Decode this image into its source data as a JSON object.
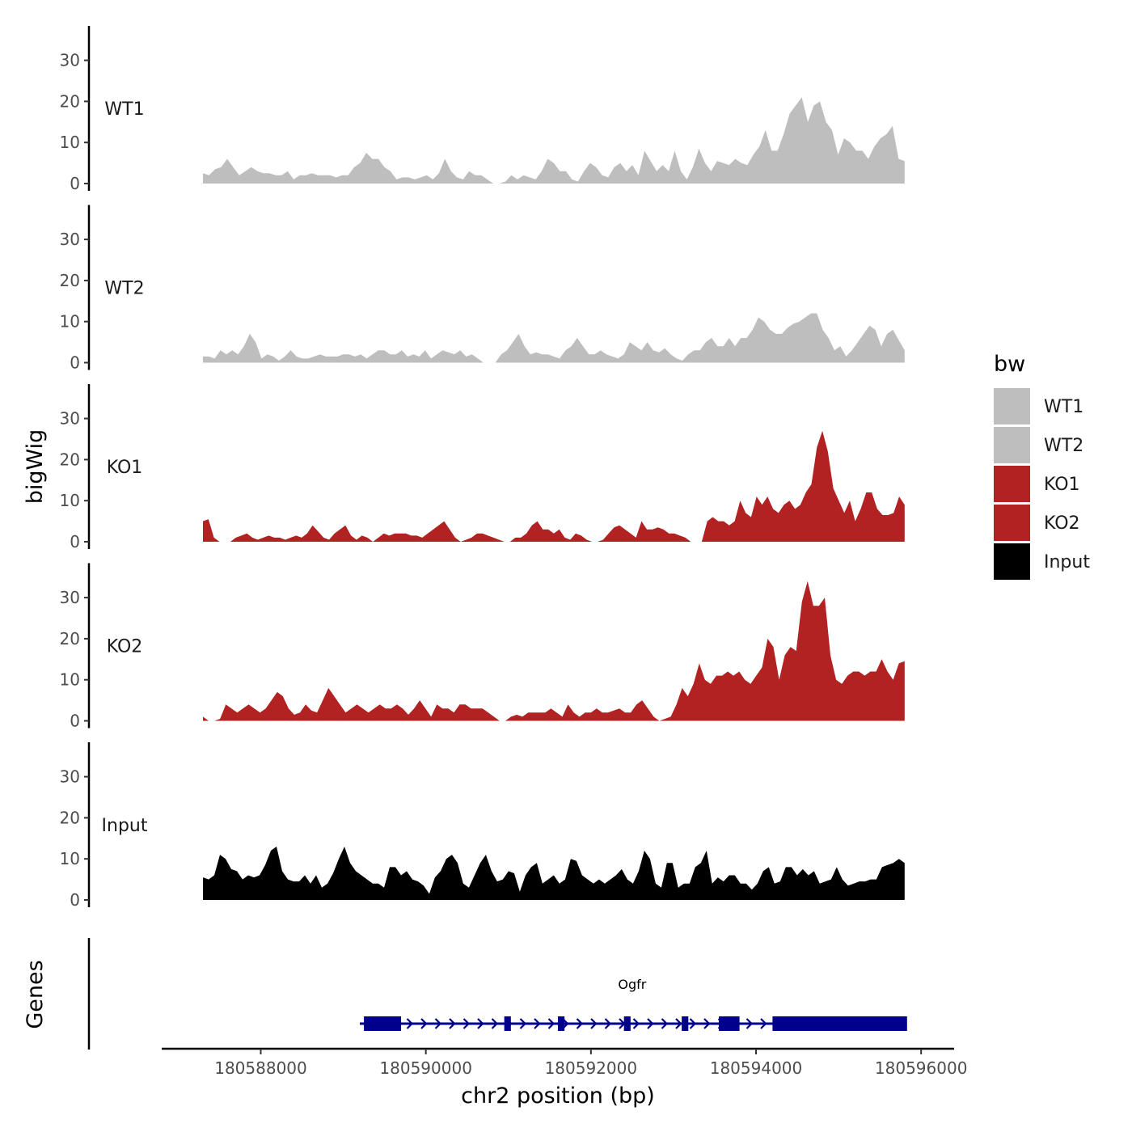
{
  "chart_data": {
    "type": "area",
    "y_axis_title": "bigWig",
    "genes_axis_title": "Genes",
    "x_axis_title": "chr2 position (bp)",
    "xlim": [
      180586800,
      180596400
    ],
    "data_range": [
      180587300,
      180595800
    ],
    "x_ticks": [
      180588000,
      180590000,
      180592000,
      180594000,
      180596000
    ],
    "x_tick_labels": [
      "180588000",
      "180590000",
      "180592000",
      "180594000",
      "180596000"
    ],
    "ylim": [
      0,
      38
    ],
    "y_ticks": [
      0,
      10,
      20,
      30
    ],
    "y_tick_labels": [
      "0",
      "10",
      "20",
      "30"
    ],
    "legend": {
      "title": "bw",
      "entries": [
        {
          "label": "WT1",
          "color": "#bebebe"
        },
        {
          "label": "WT2",
          "color": "#bebebe"
        },
        {
          "label": "KO1",
          "color": "#b22222"
        },
        {
          "label": "KO2",
          "color": "#b22222"
        },
        {
          "label": "Input",
          "color": "#000000"
        }
      ]
    },
    "tracks": [
      {
        "name": "WT1",
        "color": "#bebebe",
        "values": [
          2.5,
          2,
          3.5,
          4,
          6,
          4,
          2,
          3,
          4,
          3,
          2.5,
          2.5,
          2,
          2,
          3,
          1,
          2,
          2,
          2.5,
          2,
          2,
          2,
          1.5,
          2,
          2,
          4,
          5,
          7.5,
          6,
          6,
          4,
          3,
          1,
          1.5,
          1.5,
          1,
          1.5,
          2,
          1,
          2.5,
          6,
          3,
          1.5,
          1,
          3,
          2,
          2,
          1,
          0,
          0,
          0.5,
          2,
          1,
          2,
          1.5,
          1,
          3,
          6,
          5,
          3,
          3,
          1,
          0.5,
          3,
          5,
          4,
          2,
          1.5,
          4,
          5,
          3,
          4.5,
          2,
          8,
          5.5,
          3,
          4.5,
          3,
          8,
          3,
          1,
          4,
          8.5,
          5,
          3,
          5.5,
          5,
          4.5,
          6,
          5,
          4.5,
          7,
          9,
          13,
          8,
          8,
          12,
          17,
          19,
          21,
          15,
          19,
          20,
          15,
          13,
          7,
          11,
          10,
          8,
          8,
          6,
          9,
          11,
          12,
          14,
          6,
          5.5
        ]
      },
      {
        "name": "WT2",
        "color": "#bebebe",
        "values": [
          1.5,
          1.5,
          1,
          3,
          2,
          3,
          2,
          4,
          7,
          5,
          1,
          2,
          1.5,
          0.5,
          1.5,
          3,
          1.5,
          1,
          1,
          1.5,
          2,
          1.5,
          1.5,
          1.5,
          2,
          2,
          1.5,
          2,
          1,
          2,
          3,
          3,
          2,
          2,
          3,
          1.5,
          2,
          1.5,
          3,
          1,
          2,
          3,
          2.5,
          2,
          3,
          1.5,
          2,
          1,
          0,
          0,
          0,
          2,
          3,
          5,
          7,
          4,
          2,
          2.5,
          2,
          2,
          1.5,
          1,
          3,
          4,
          6,
          4,
          2,
          2,
          3,
          2,
          1.5,
          1,
          2,
          5,
          4,
          3,
          5,
          3,
          2.5,
          3.5,
          2,
          1,
          0.5,
          2,
          3,
          3,
          5,
          6,
          4,
          4,
          6,
          4,
          6,
          6,
          8,
          11,
          10,
          8,
          7,
          7,
          8.5,
          9.5,
          10,
          11,
          12,
          12,
          8,
          6,
          3,
          4,
          1.5,
          3,
          5,
          7,
          9,
          8,
          4,
          7,
          8,
          5.5,
          3
        ]
      },
      {
        "name": "KO1",
        "color": "#b22222",
        "values": [
          5,
          5.5,
          1,
          0,
          0,
          0,
          1,
          1.5,
          2,
          1,
          0.5,
          1,
          1.5,
          1,
          1,
          0.5,
          1,
          1.5,
          1,
          2,
          4,
          2.5,
          1,
          0.5,
          2,
          3,
          4,
          1.5,
          0.5,
          1.5,
          1,
          0,
          1,
          2,
          1.5,
          2,
          2,
          2,
          1.5,
          1.5,
          1,
          2,
          3,
          4,
          5,
          3,
          1,
          0,
          0.5,
          1,
          2,
          2,
          1.5,
          1,
          0.5,
          0,
          0,
          1,
          1,
          2,
          4,
          5,
          3,
          3,
          2,
          3,
          1,
          0.5,
          2,
          1.5,
          0.5,
          0,
          0,
          0.5,
          2,
          3.5,
          4,
          3,
          2,
          1,
          5,
          3,
          3,
          3.5,
          3,
          2,
          2,
          1.5,
          1,
          0,
          0,
          0,
          5,
          6,
          5,
          5,
          4,
          5,
          10,
          7,
          6,
          11,
          9,
          11,
          8,
          7,
          9,
          10,
          8,
          9,
          12,
          14,
          23,
          27,
          22,
          13,
          10,
          7,
          10,
          5,
          8,
          12,
          12,
          8,
          6.5,
          6.5,
          7,
          11,
          9
        ]
      },
      {
        "name": "KO2",
        "color": "#b22222",
        "values": [
          1,
          0,
          0,
          0.5,
          4,
          3,
          2,
          3,
          4,
          3,
          2,
          3,
          5,
          7,
          6,
          3,
          1.5,
          2,
          4,
          2.5,
          2,
          5,
          8,
          6,
          4,
          2,
          3,
          4,
          3,
          2,
          3,
          4,
          3,
          3,
          4,
          3,
          1.5,
          3,
          5,
          3,
          1,
          4,
          3,
          3,
          2,
          4,
          4,
          3,
          3,
          3,
          2,
          1,
          0,
          0,
          1,
          1.5,
          1,
          2,
          2,
          2,
          2,
          3,
          2,
          1,
          4,
          2,
          1,
          2,
          2,
          3,
          2,
          2,
          2.5,
          3,
          2,
          2,
          4,
          5,
          3,
          1,
          0,
          0.5,
          1,
          4,
          8,
          6,
          9,
          14,
          10,
          9,
          11,
          11,
          12,
          11,
          12,
          10,
          9,
          11,
          13,
          20,
          18,
          10,
          16,
          18,
          17,
          29,
          34,
          28,
          28,
          30,
          16,
          10,
          9,
          11,
          12,
          12,
          11,
          12,
          12,
          15,
          12,
          10,
          14,
          14.5
        ]
      },
      {
        "name": "Input",
        "color": "#000000",
        "values": [
          5.5,
          5,
          6,
          11,
          10,
          7.5,
          7,
          5,
          6,
          5.5,
          6,
          8.5,
          12,
          13,
          7,
          5,
          4.5,
          4.5,
          6,
          4,
          6,
          3,
          4,
          6.5,
          10,
          13,
          9,
          7,
          6,
          5,
          4,
          4,
          3,
          8,
          8,
          6,
          7,
          5,
          4.5,
          3.5,
          1.5,
          5.5,
          7,
          10,
          11,
          9,
          4,
          3,
          6,
          9,
          11,
          7,
          4.5,
          5,
          7,
          6.5,
          2,
          6,
          8,
          9,
          4,
          5,
          6,
          4,
          5,
          10,
          9.5,
          6,
          5,
          4,
          5,
          4,
          5,
          6,
          7.5,
          5,
          4,
          7,
          12,
          10,
          4,
          3,
          9,
          9,
          3,
          4,
          4,
          8,
          9,
          12,
          4,
          5.5,
          4.5,
          6,
          6,
          4,
          4,
          2.5,
          4,
          7,
          8,
          4,
          4.5,
          8,
          8,
          6,
          7.5,
          6,
          7,
          4,
          4.5,
          5,
          8,
          5,
          3.5,
          4,
          4.5,
          4.5,
          5,
          5,
          8,
          8.5,
          9,
          10,
          9
        ]
      }
    ],
    "gene": {
      "name": "Ogfr",
      "start": 180589200,
      "end": 180595800,
      "strand": "+",
      "color": "#00008b",
      "exons": [
        {
          "start": 180589250,
          "end": 180589700
        },
        {
          "start": 180590950,
          "end": 180591030
        },
        {
          "start": 180591600,
          "end": 180591680
        },
        {
          "start": 180592400,
          "end": 180592480
        },
        {
          "start": 180593100,
          "end": 180593180
        },
        {
          "start": 180593550,
          "end": 180593800
        },
        {
          "start": 180594200,
          "end": 180595830
        }
      ]
    }
  }
}
